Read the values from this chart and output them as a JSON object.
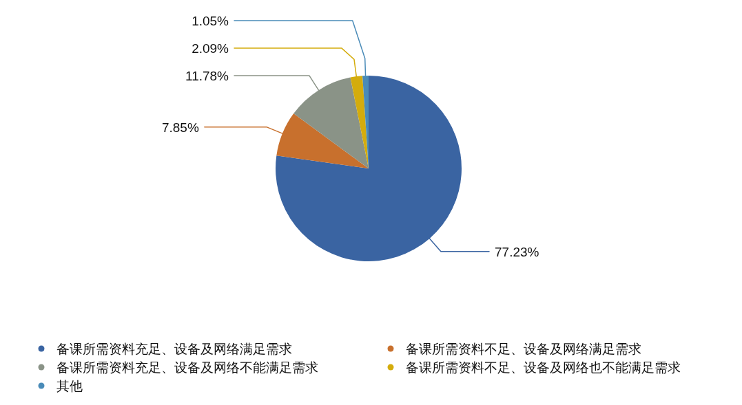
{
  "chart_data": {
    "type": "pie",
    "categories": [
      "备课所需资料充足、设备及网络满足需求",
      "备课所需资料不足、设备及网络满足需求",
      "备课所需资料充足、设备及网络不能满足需求",
      "备课所需资料不足、设备及网络也不能满足需求",
      "其他"
    ],
    "values": [
      77.23,
      7.85,
      11.78,
      2.09,
      1.05
    ],
    "colors": [
      "#3a64a2",
      "#c8702d",
      "#8a9387",
      "#d4ac0c",
      "#4a8bb8"
    ],
    "value_labels": [
      "77.23%",
      "7.85%",
      "11.78%",
      "2.09%",
      "1.05%"
    ],
    "legend": "bottom"
  }
}
